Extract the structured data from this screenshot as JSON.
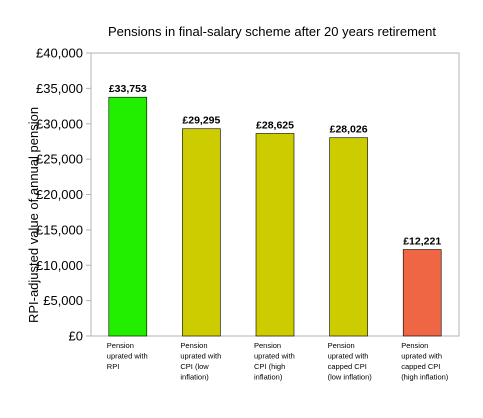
{
  "chart_data": {
    "type": "bar",
    "title": "Pensions in final-salary scheme after 20 years retirement",
    "ylabel": "RPI-adjusted value of annual pension",
    "xlabel": "",
    "ylim": [
      0,
      40000
    ],
    "yticks": [
      0,
      5000,
      10000,
      15000,
      20000,
      25000,
      30000,
      35000,
      40000
    ],
    "ytick_labels": [
      "£0",
      "£5,000",
      "£10,000",
      "£15,000",
      "£20,000",
      "£25,000",
      "£30,000",
      "£35,000",
      "£40,000"
    ],
    "grid": false,
    "legend": "none",
    "categories": [
      [
        "Pension",
        "uprated with",
        "RPI"
      ],
      [
        "Pension",
        "uprated with",
        "CPI (low",
        "inflation)"
      ],
      [
        "Pension",
        "uprated with",
        "CPI (high",
        "inflation)"
      ],
      [
        "Pension",
        "uprated with",
        "capped CPI",
        "(low inflation)"
      ],
      [
        "Pension",
        "uprated with",
        "capped CPI",
        "(high inflation)"
      ]
    ],
    "values": [
      33753,
      29295,
      28625,
      28026,
      12221
    ],
    "data_labels": [
      "£33,753",
      "£29,295",
      "£28,625",
      "£28,026",
      "£12,221"
    ],
    "colors": [
      "#22ee00",
      "#cccc00",
      "#cccc00",
      "#cccc00",
      "#ee6644"
    ]
  }
}
